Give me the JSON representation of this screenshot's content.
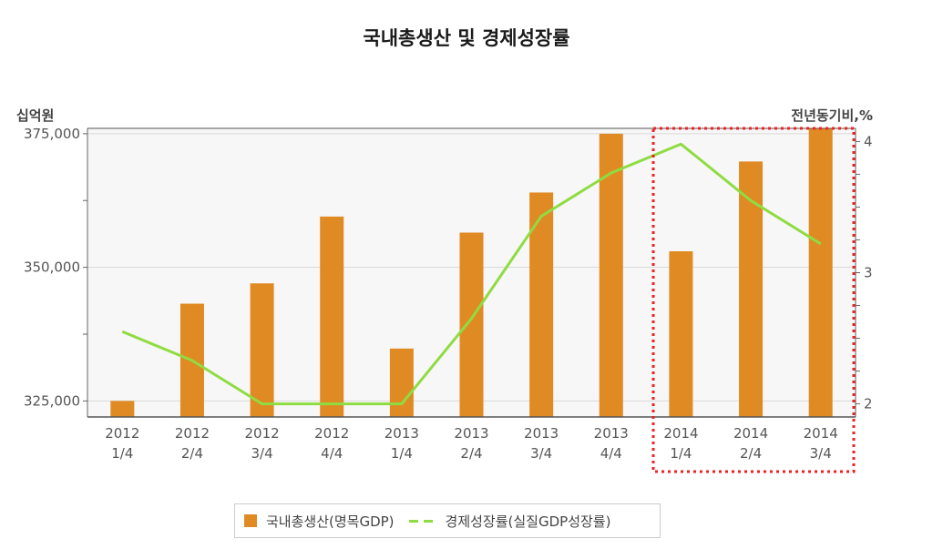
{
  "chart_data": {
    "type": "bar",
    "title": "국내총생산 및 경제성장률",
    "ylabel_left": "십억원",
    "ylabel_right": "전년동기비,%",
    "categories": [
      [
        "2012",
        "1/4"
      ],
      [
        "2012",
        "2/4"
      ],
      [
        "2012",
        "3/4"
      ],
      [
        "2012",
        "4/4"
      ],
      [
        "2013",
        "1/4"
      ],
      [
        "2013",
        "2/4"
      ],
      [
        "2013",
        "3/4"
      ],
      [
        "2013",
        "4/4"
      ],
      [
        "2014",
        "1/4"
      ],
      [
        "2014",
        "2/4"
      ],
      [
        "2014",
        "3/4"
      ]
    ],
    "left_axis": {
      "ylim": [
        322000,
        376000
      ],
      "ticks": [
        "325,000",
        "350,000",
        "375,000"
      ],
      "tick_values": [
        325000,
        350000,
        375000
      ]
    },
    "right_axis": {
      "ylim": [
        1.9,
        4.1
      ],
      "ticks": [
        "2",
        "3",
        "4"
      ],
      "tick_values": [
        2,
        3,
        4
      ]
    },
    "series": [
      {
        "name": "국내총생산(명목GDP)",
        "type": "bar",
        "axis": "left",
        "color": "#e08a24",
        "values": [
          325000,
          343200,
          347000,
          359500,
          334800,
          356500,
          364000,
          375000,
          353000,
          369800,
          376000
        ]
      },
      {
        "name": "경제성장률(실질GDP성장률)",
        "type": "line",
        "axis": "right",
        "color": "#8fdc42",
        "values": [
          2.55,
          2.33,
          2.0,
          2.0,
          2.0,
          2.65,
          3.43,
          3.76,
          3.98,
          3.55,
          3.22
        ]
      }
    ],
    "highlight": {
      "from": "2014 1/4",
      "to": "2014 3/4",
      "color": "#ee2222",
      "style": "dotted"
    },
    "legend": "bottom"
  }
}
